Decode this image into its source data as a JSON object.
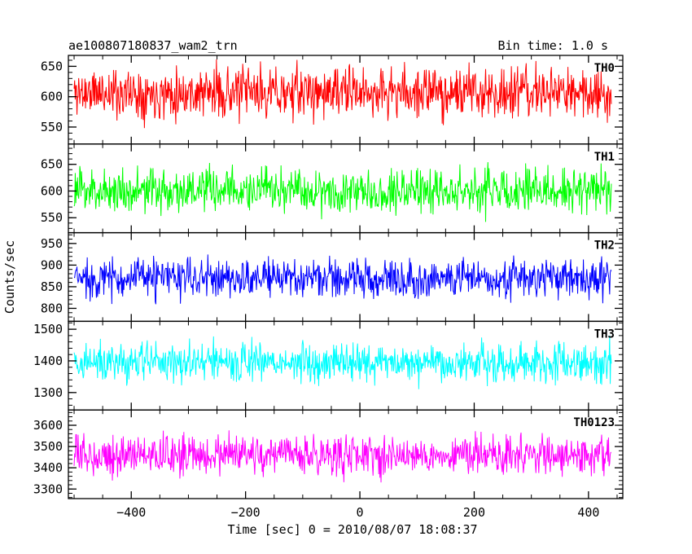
{
  "chart_data": {
    "type": "line",
    "title": "ae100807180837_wam2_trn",
    "subtitle": "Bin time: 1.0 s",
    "xlabel": "Time [sec] 0 = 2010/08/07 18:08:37",
    "ylabel": "Counts/sec",
    "xlim": [
      -510,
      460
    ],
    "x_range": [
      -500,
      440
    ],
    "x_step": 1.0,
    "x_ticks": [
      -400,
      -200,
      0,
      200,
      400
    ],
    "x_tick_labels": [
      "−400",
      "−200",
      "0",
      "200",
      "400"
    ],
    "grid": false,
    "panels": [
      {
        "name": "TH0",
        "color": "#ff0000",
        "ylim": [
          522,
          668
        ],
        "yticks": [
          550,
          600,
          650
        ],
        "ytick_labels": [
          "550",
          "600",
          "650"
        ],
        "mean": 607,
        "noise": 36,
        "ymin": 522,
        "ymax": 668,
        "seed": 11
      },
      {
        "name": "TH1",
        "color": "#00ff00",
        "ylim": [
          522,
          688
        ],
        "yticks": [
          550,
          600,
          650
        ],
        "ytick_labels": [
          "550",
          "600",
          "650"
        ],
        "mean": 601,
        "noise": 36,
        "ymin": 530,
        "ymax": 688,
        "seed": 23
      },
      {
        "name": "TH2",
        "color": "#0000ff",
        "ylim": [
          770,
          975
        ],
        "yticks": [
          800,
          850,
          900,
          950
        ],
        "ytick_labels": [
          "800",
          "850",
          "900",
          "950"
        ],
        "mean": 870,
        "noise": 40,
        "ymin": 783,
        "ymax": 975,
        "seed": 37
      },
      {
        "name": "TH3",
        "color": "#00ffff",
        "ylim": [
          1245,
          1525
        ],
        "yticks": [
          1300,
          1400,
          1500
        ],
        "ytick_labels": [
          "1300",
          "1400",
          "1500"
        ],
        "mean": 1395,
        "noise": 55,
        "ymin": 1260,
        "ymax": 1525,
        "seed": 41
      },
      {
        "name": "TH0123",
        "color": "#ff00ff",
        "ylim": [
          3255,
          3672
        ],
        "yticks": [
          3300,
          3400,
          3500,
          3600
        ],
        "ytick_labels": [
          "3300",
          "3400",
          "3500",
          "3600"
        ],
        "mean": 3460,
        "noise": 80,
        "ymin": 3300,
        "ymax": 3672,
        "seed": 53
      }
    ]
  }
}
